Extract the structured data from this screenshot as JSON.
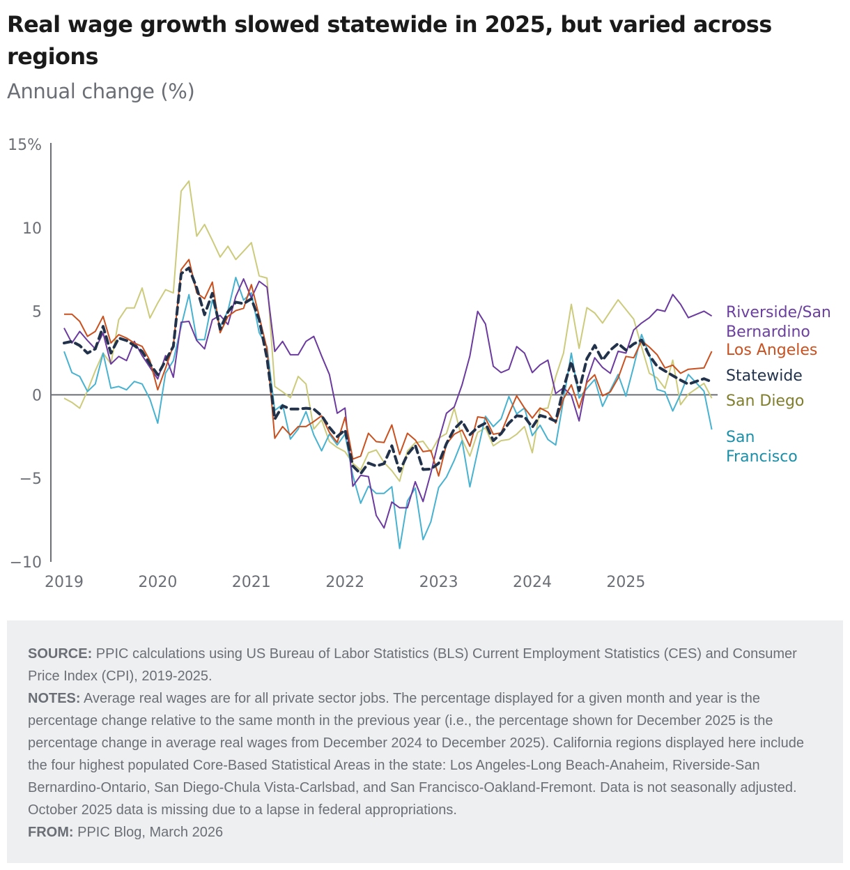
{
  "title": "Real wage growth slowed statewide in 2025, but varied across regions",
  "subtitle": "Annual change (%)",
  "chart_data": {
    "type": "line",
    "title": "Real wage growth slowed statewide in 2025, but varied across regions",
    "subtitle": "Annual change (%)",
    "xlabel": "",
    "ylabel": "Annual change (%)",
    "ylim": [
      -10,
      15
    ],
    "yticks": [
      {
        "value": 15,
        "label": "15%"
      },
      {
        "value": 10,
        "label": "10"
      },
      {
        "value": 5,
        "label": "5"
      },
      {
        "value": 0,
        "label": "0"
      },
      {
        "value": -5,
        "label": "−5"
      },
      {
        "value": -10,
        "label": "−10"
      }
    ],
    "x_start": "Jan 2019",
    "x_end": "Dec 2025",
    "x_frequency": "monthly",
    "xticks": [
      {
        "month_index": 0,
        "label": "2019"
      },
      {
        "month_index": 12,
        "label": "2020"
      },
      {
        "month_index": 24,
        "label": "2021"
      },
      {
        "month_index": 36,
        "label": "2022"
      },
      {
        "month_index": 48,
        "label": "2023"
      },
      {
        "month_index": 60,
        "label": "2024"
      },
      {
        "month_index": 72,
        "label": "2025"
      }
    ],
    "grid": false,
    "zero_line": true,
    "legend_placement": "right (direct labels at line ends)",
    "series": [
      {
        "name": "Riverside/San Bernardino",
        "label_lines": [
          "Riverside/San",
          "Bernardino"
        ],
        "color": "#6b3a9e",
        "label_color": "#6b3fa0",
        "dashed": false,
        "values": [
          4.0,
          3.1,
          3.8,
          3.25,
          2.75,
          3.7,
          1.85,
          2.3,
          2.05,
          3.2,
          2.35,
          1.65,
          0.95,
          2.35,
          1.05,
          4.35,
          4.4,
          3.25,
          2.75,
          4.49,
          4.76,
          4.21,
          5.88,
          6.94,
          5.8,
          6.8,
          6.45,
          2.6,
          3.2,
          2.4,
          2.4,
          3.2,
          3.5,
          2.33,
          1.22,
          -1.1,
          -0.79,
          -5.47,
          -4.82,
          -4.89,
          -7.22,
          -7.97,
          -6.42,
          -6.76,
          -6.76,
          -5.2,
          -6.39,
          -4.68,
          -2.74,
          -1.1,
          -0.72,
          0.6,
          2.33,
          5.0,
          4.24,
          1.71,
          1.33,
          1.53,
          2.89,
          2.5,
          1.33,
          1.8,
          2.08,
          0.08,
          0.42,
          -0.03,
          -1.56,
          0.88,
          2.22,
          1.64,
          1.29,
          2.61,
          2.5,
          3.89,
          4.3,
          4.62,
          5.11,
          5.0,
          6.01,
          5.42,
          4.62,
          null,
          5.01,
          4.72
        ]
      },
      {
        "name": "Los Angeles",
        "label_lines": [
          "Los Angeles"
        ],
        "color": "#c9501f",
        "label_color": "#c9501f",
        "dashed": false,
        "values": [
          4.83,
          4.83,
          4.4,
          3.5,
          3.8,
          4.7,
          3.1,
          3.6,
          3.4,
          3.1,
          2.9,
          2.05,
          0.3,
          1.6,
          2.95,
          7.5,
          8.1,
          6.1,
          5.75,
          6.75,
          3.72,
          4.7,
          5.04,
          5.18,
          6.6,
          4.7,
          2.75,
          -2.6,
          -1.9,
          -2.4,
          -1.9,
          -1.9,
          -1.6,
          -1.25,
          -2.25,
          -2.85,
          -1.35,
          -3.85,
          -3.67,
          -2.3,
          -2.8,
          -2.85,
          -1.8,
          -3.57,
          -2.3,
          -2.7,
          -3.4,
          -3.33,
          -4.86,
          -2.95,
          -2.36,
          -2.11,
          -3.08,
          -1.32,
          -1.39,
          -2.36,
          -2.28,
          -1.14,
          -0.06,
          -0.79,
          -1.39,
          -0.79,
          -1.03,
          -1.69,
          -0.24,
          0.6,
          -0.79,
          0.74,
          1.2,
          -0.06,
          0.18,
          1.0,
          2.3,
          2.22,
          3.24,
          2.86,
          2.4,
          1.61,
          1.78,
          1.29,
          1.53,
          null,
          1.61,
          2.61
        ]
      },
      {
        "name": "Statewide",
        "label_lines": [
          "Statewide"
        ],
        "color": "#22324a",
        "label_color": "#22324a",
        "dashed": true,
        "values": [
          3.1,
          3.2,
          2.95,
          2.5,
          2.75,
          4.1,
          2.5,
          3.4,
          3.25,
          2.95,
          2.6,
          1.85,
          1.2,
          2.05,
          2.9,
          7.25,
          7.6,
          6.4,
          4.8,
          6.08,
          3.93,
          4.97,
          5.55,
          5.46,
          5.75,
          4.5,
          2.2,
          -1.45,
          -0.65,
          -0.85,
          -0.85,
          -0.8,
          -0.85,
          -1.25,
          -1.95,
          -2.5,
          -2.1,
          -4.26,
          -4.72,
          -4.08,
          -4.26,
          -4.12,
          -3.05,
          -4.58,
          -3.57,
          -3.01,
          -4.47,
          -4.44,
          -4.1,
          -2.92,
          -2.04,
          -1.58,
          -2.39,
          -1.94,
          -1.69,
          -2.74,
          -2.32,
          -1.69,
          -1.25,
          -1.31,
          -1.94,
          -1.23,
          -1.37,
          -1.58,
          0.39,
          1.99,
          0.25,
          2.17,
          2.96,
          2.08,
          2.68,
          3.07,
          2.68,
          3.05,
          3.28,
          2.36,
          1.71,
          1.43,
          1.15,
          0.88,
          0.64,
          null,
          0.97,
          0.78
        ]
      },
      {
        "name": "San Diego",
        "label_lines": [
          "San Diego"
        ],
        "color": "#cccb7c",
        "label_color": "#7f7e2c",
        "dashed": false,
        "values": [
          -0.2,
          -0.45,
          -0.8,
          0.25,
          1.45,
          2.5,
          1.85,
          4.5,
          5.2,
          5.2,
          6.4,
          4.6,
          5.5,
          6.3,
          6.1,
          12.2,
          12.8,
          9.5,
          10.2,
          9.25,
          8.25,
          8.9,
          8.1,
          8.6,
          9.11,
          7.12,
          6.99,
          0.5,
          0.18,
          -0.17,
          1.1,
          0.65,
          -2.05,
          -1.5,
          -2.8,
          -3.15,
          -3.4,
          -4.1,
          -4.5,
          -3.47,
          -3.3,
          -4.05,
          -4.54,
          -5.17,
          -3.36,
          -2.87,
          -2.78,
          -3.43,
          -2.6,
          -2.32,
          -0.79,
          -2.67,
          -3.67,
          -2.25,
          -1.97,
          -3.05,
          -2.74,
          -2.67,
          -2.36,
          -1.9,
          -3.47,
          -0.86,
          -0.79,
          1.08,
          2.5,
          5.42,
          2.78,
          5.22,
          4.9,
          4.3,
          5.0,
          5.69,
          5.11,
          4.53,
          2.89,
          1.29,
          1.01,
          0.39,
          2.08,
          -0.59,
          0.04,
          null,
          0.69,
          -0.2
        ]
      },
      {
        "name": "San Francisco",
        "label_lines": [
          "San",
          "Francisco"
        ],
        "color": "#47b2d0",
        "label_color": "#1b8fa8",
        "dashed": false,
        "values": [
          2.6,
          1.33,
          1.1,
          0.2,
          0.65,
          2.5,
          0.4,
          0.5,
          0.3,
          0.8,
          0.65,
          -0.25,
          -1.7,
          1.3,
          2.05,
          4.1,
          6.0,
          3.3,
          3.3,
          5.69,
          4.07,
          5.04,
          7.03,
          5.67,
          6.11,
          3.72,
          2.89,
          -0.93,
          -0.58,
          -2.65,
          -2.05,
          -1.0,
          -2.4,
          -3.35,
          -2.35,
          -3.0,
          -2.35,
          -4.82,
          -6.49,
          -5.47,
          -5.9,
          -5.9,
          -5.5,
          -9.2,
          -6.35,
          -5.58,
          -8.67,
          -7.6,
          -5.55,
          -4.92,
          -3.92,
          -2.74,
          -5.51,
          -3.36,
          -1.28,
          -1.9,
          -1.44,
          -0.1,
          -1.14,
          -0.79,
          -2.44,
          -1.82,
          -2.67,
          -3.0,
          -0.3,
          2.5,
          -0.19,
          0.39,
          0.92,
          -0.69,
          0.28,
          1.22,
          -0.08,
          1.71,
          3.61,
          2.4,
          0.32,
          0.18,
          -0.97,
          0.04,
          1.22,
          null,
          0.22,
          -2.08
        ]
      }
    ],
    "draw_order": [
      "San Diego",
      "San Francisco",
      "Riverside/San Bernardino",
      "Los Angeles",
      "Statewide"
    ]
  },
  "notes": {
    "source_label": "SOURCE:",
    "source_text": " PPIC calculations using US Bureau of Labor Statistics (BLS) Current Employment Statistics (CES) and Consumer Price Index (CPI), 2019-2025.",
    "notes_label": "NOTES:",
    "notes_text": " Average real wages are for all private sector jobs. The percentage displayed for a given month and year is the percentage change relative to the same month in the previous year (i.e., the percentage shown for December 2025 is the percentage change in average real wages from December 2024 to December 2025). California regions displayed here include the four highest populated Core-Based Statistical Areas in the state: Los Angeles-Long Beach-Anaheim, Riverside-San Bernardino-Ontario, San Diego-Chula Vista-Carlsbad, and San Francisco-Oakland-Fremont. Data is not seasonally adjusted. October 2025 data is missing due to a lapse in federal appropriations.",
    "from_label": "FROM:",
    "from_text": " PPIC Blog, March 2026"
  }
}
